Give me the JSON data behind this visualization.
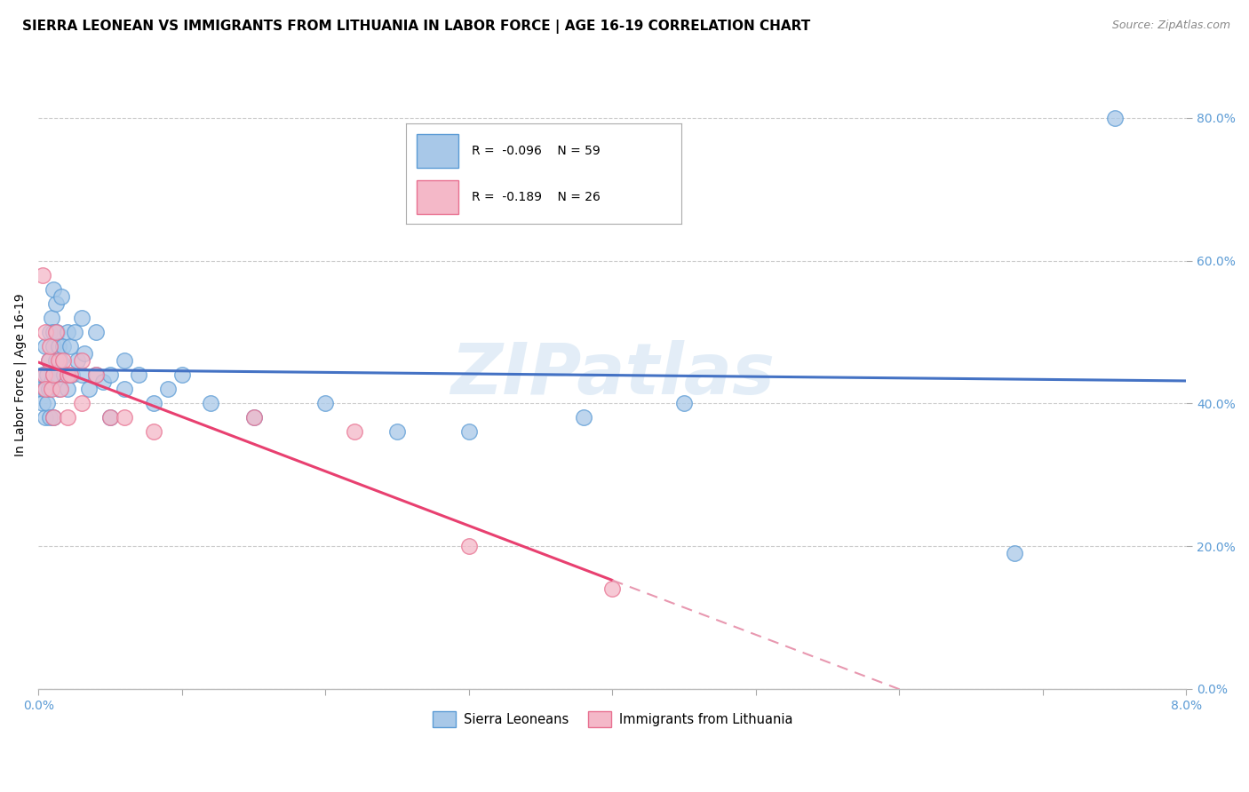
{
  "title": "SIERRA LEONEAN VS IMMIGRANTS FROM LITHUANIA IN LABOR FORCE | AGE 16-19 CORRELATION CHART",
  "source": "Source: ZipAtlas.com",
  "ylabel": "In Labor Force | Age 16-19",
  "xlim": [
    0.0,
    0.08
  ],
  "ylim": [
    0.0,
    0.88
  ],
  "xticks": [
    0.0,
    0.01,
    0.02,
    0.03,
    0.04,
    0.05,
    0.06,
    0.07,
    0.08
  ],
  "yticks": [
    0.0,
    0.2,
    0.4,
    0.6,
    0.8
  ],
  "sl_color": "#a8c8e8",
  "sl_edge_color": "#5b9bd5",
  "lith_color": "#f4b8c8",
  "lith_edge_color": "#e87090",
  "reg_sl_color": "#4472c4",
  "reg_lith_solid_color": "#e84070",
  "reg_lith_dash_color": "#e898b0",
  "watermark": "ZIPatlas",
  "grid_color": "#cccccc",
  "background_color": "#ffffff",
  "title_fontsize": 11,
  "label_fontsize": 10,
  "tick_fontsize": 10,
  "tick_color": "#5b9bd5",
  "sierra_leonean_x": [
    0.0002,
    0.0003,
    0.0003,
    0.0004,
    0.0005,
    0.0005,
    0.0006,
    0.0006,
    0.0007,
    0.0007,
    0.0008,
    0.0008,
    0.0009,
    0.0009,
    0.001,
    0.001,
    0.001,
    0.001,
    0.001,
    0.0012,
    0.0012,
    0.0013,
    0.0013,
    0.0014,
    0.0014,
    0.0015,
    0.0016,
    0.0017,
    0.0018,
    0.002,
    0.002,
    0.0022,
    0.0023,
    0.0025,
    0.0027,
    0.003,
    0.003,
    0.0032,
    0.0035,
    0.004,
    0.004,
    0.0045,
    0.005,
    0.005,
    0.006,
    0.006,
    0.007,
    0.008,
    0.009,
    0.01,
    0.012,
    0.015,
    0.02,
    0.025,
    0.03,
    0.038,
    0.045,
    0.068,
    0.075
  ],
  "sierra_leonean_y": [
    0.42,
    0.4,
    0.44,
    0.42,
    0.48,
    0.38,
    0.44,
    0.4,
    0.46,
    0.42,
    0.5,
    0.38,
    0.52,
    0.43,
    0.56,
    0.5,
    0.48,
    0.44,
    0.38,
    0.54,
    0.46,
    0.5,
    0.44,
    0.48,
    0.42,
    0.46,
    0.55,
    0.48,
    0.44,
    0.5,
    0.42,
    0.48,
    0.44,
    0.5,
    0.46,
    0.52,
    0.44,
    0.47,
    0.42,
    0.5,
    0.44,
    0.43,
    0.44,
    0.38,
    0.46,
    0.42,
    0.44,
    0.4,
    0.42,
    0.44,
    0.4,
    0.38,
    0.4,
    0.36,
    0.36,
    0.38,
    0.4,
    0.19,
    0.8
  ],
  "lithuania_x": [
    0.0003,
    0.0004,
    0.0005,
    0.0005,
    0.0007,
    0.0008,
    0.0009,
    0.001,
    0.001,
    0.0012,
    0.0014,
    0.0015,
    0.0017,
    0.002,
    0.002,
    0.0022,
    0.003,
    0.003,
    0.004,
    0.005,
    0.006,
    0.008,
    0.015,
    0.022,
    0.03,
    0.04
  ],
  "lithuania_y": [
    0.58,
    0.44,
    0.5,
    0.42,
    0.46,
    0.48,
    0.42,
    0.44,
    0.38,
    0.5,
    0.46,
    0.42,
    0.46,
    0.44,
    0.38,
    0.44,
    0.46,
    0.4,
    0.44,
    0.38,
    0.38,
    0.36,
    0.38,
    0.36,
    0.2,
    0.14
  ]
}
